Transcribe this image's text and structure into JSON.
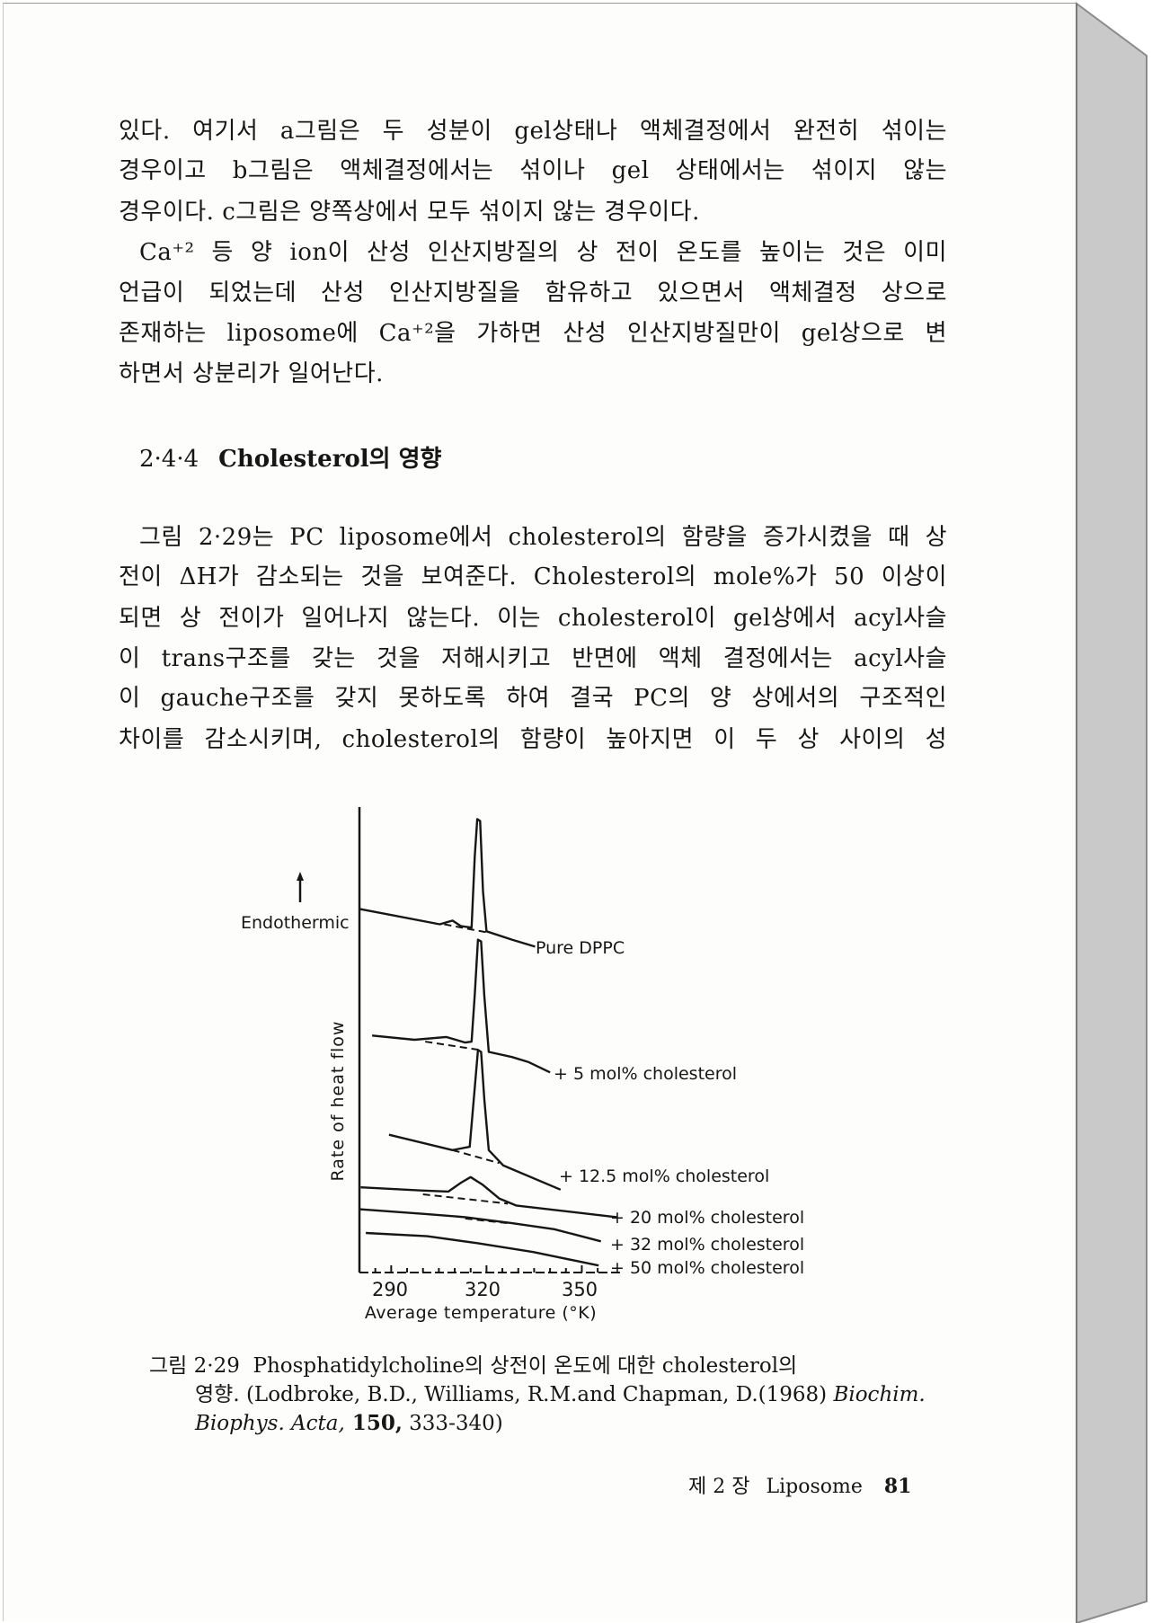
{
  "paragraph1": [
    "있다. 여기서 a그림은 두 성분이 gel상태나 액체결정에서 완전히 섞이는",
    "경우이고 b그림은 액체결정에서는 섞이나 gel 상태에서는 섞이지 않는",
    "경우이다. c그림은 양쪽상에서 모두 섞이지 않는 경우이다.",
    "Ca⁺² 등 양 ion이 산성 인산지방질의 상 전이 온도를 높이는 것은 이미",
    "언급이 되었는데 산성 인산지방질을 함유하고 있으면서 액체결정 상으로",
    "존재하는 liposome에 Ca⁺²을 가하면 산성 인산지방질만이 gel상으로 변",
    "하면서 상분리가 일어난다."
  ],
  "heading": {
    "number": "2·4·4",
    "title": "Cholesterol의 영향"
  },
  "paragraph2": [
    "그림 2·29는 PC liposome에서 cholesterol의 함량을 증가시켰을 때 상",
    "전이 ΔH가 감소되는 것을 보여준다. Cholesterol의 mole%가 50 이상이",
    "되면 상 전이가 일어나지 않는다. 이는 cholesterol이 gel상에서 acyl사슬",
    "이 trans구조를 갖는 것을 저해시키고 반면에 액체 결정에서는 acyl사슬",
    "이 gauche구조를 갖지 못하도록 하여 결국 PC의 양 상에서의 구조적인",
    "차이를 감소시키며, cholesterol의 함량이 높아지면 이 두 상 사이의 성"
  ],
  "chart_data": {
    "type": "line",
    "xlabel": "Average temperature (°K)",
    "ylabel": "Rate of heat flow",
    "arrow_label": "Endothermic",
    "xlim": [
      280,
      362
    ],
    "ylim": [
      0,
      100
    ],
    "xticks": [
      290,
      320,
      350
    ],
    "grid": false,
    "legend": "labels at right end of each curve",
    "series": [
      {
        "name": "Pure DPPC",
        "x": [
          280,
          305.3,
          309.3,
          312,
          315.3,
          316.3,
          317.1,
          318,
          318.9,
          320,
          328,
          335.3
        ],
        "y": [
          78.1,
          74.8,
          75.6,
          74.4,
          74.1,
          89.3,
          97.4,
          97.0,
          81.9,
          73.3,
          71.5,
          70.0
        ],
        "baseline": {
          "x": [
            306.7,
            320.7
          ],
          "y": [
            74.8,
            73.0
          ]
        }
      },
      {
        "name": "+ 5 mol% cholesterol",
        "x": [
          284,
          297.3,
          307.3,
          313.3,
          315.3,
          316.3,
          317.3,
          318.3,
          319.3,
          320.7,
          328,
          333.3,
          340
        ],
        "y": [
          50.9,
          50.0,
          50.6,
          49.4,
          49.6,
          59.6,
          71.5,
          71.1,
          59.6,
          47.4,
          46.3,
          45.2,
          43.0
        ],
        "baseline": {
          "x": [
            300.7,
            318
          ],
          "y": [
            49.6,
            47.8
          ]
        }
      },
      {
        "name": "+ 12.5 mol% cholesterol",
        "x": [
          289.3,
          309.3,
          314.7,
          316,
          317.3,
          318.3,
          319.3,
          320.7,
          325.3,
          343.3
        ],
        "y": [
          29.6,
          26.3,
          27.0,
          37.4,
          47.8,
          47.4,
          37.4,
          26.3,
          23.0,
          17.8
        ],
        "baseline": {
          "x": [
            309.3,
            324
          ],
          "y": [
            26.3,
            23.5
          ]
        }
      },
      {
        "name": "+ 20 mol% cholesterol",
        "x": [
          280.4,
          300,
          308,
          312,
          315,
          318.7,
          324,
          329.3,
          361
        ],
        "y": [
          18.3,
          17.6,
          17.4,
          19.3,
          20.5,
          18.9,
          15.9,
          14.4,
          11.9
        ],
        "baseline": {
          "x": [
            300,
            326.7
          ],
          "y": [
            16.8,
            14.8
          ]
        }
      },
      {
        "name": "+ 32 mol% cholesterol",
        "x": [
          280,
          300,
          313.3,
          328,
          341.3,
          356
        ],
        "y": [
          13.6,
          12.6,
          11.9,
          10.6,
          9.3,
          6.7
        ],
        "baseline": {
          "x": [
            313.3,
            326.7
          ],
          "y": [
            11.6,
            10.6
          ]
        }
      },
      {
        "name": "+ 50 mol% cholesterol",
        "x": [
          282,
          301.3,
          317.3,
          334.7,
          355.3
        ],
        "y": [
          8.5,
          7.8,
          6.3,
          4.4,
          1.5
        ]
      }
    ]
  },
  "caption": {
    "label": "그림 2·29",
    "line1": "Phosphatidylcholine의 상전이 온도에 대한 cholesterol의",
    "line2": "영향. (Lodbroke, B.D., Williams, R.M.and Chapman, D.(1968) ",
    "line2_italic": "Biochim.",
    "line3_italic": "Biophys. Acta,",
    "line3_bold": " 150,",
    "line3": " 333-340)"
  },
  "footer": {
    "chapter": "제 2 장",
    "title": "Liposome",
    "page": "81"
  }
}
